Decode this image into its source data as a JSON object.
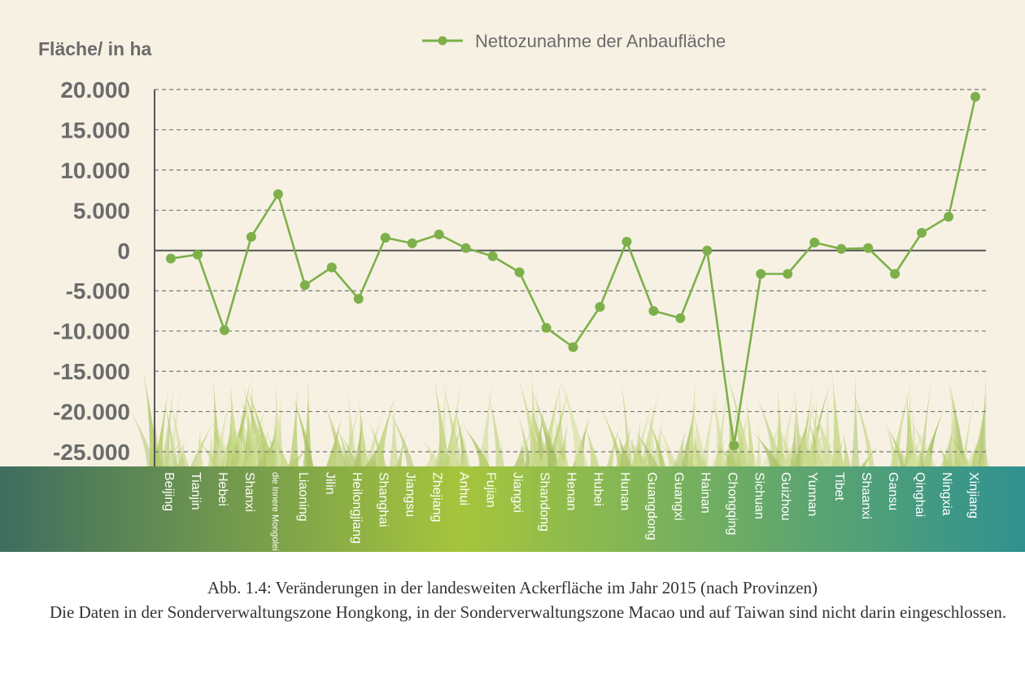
{
  "chart_data": {
    "type": "line",
    "ylabel": "Fläche/ in ha",
    "ylim": [
      -25000,
      20000
    ],
    "ytick_step": 5000,
    "ytick_labels": [
      "20.000",
      "15.000",
      "10.000",
      "5.000",
      "0",
      "-5.000",
      "-10.000",
      "-15.000",
      "-20.000",
      "-25.000"
    ],
    "grid": true,
    "legend_position": "top",
    "categories": [
      "Beijing",
      "Tianjin",
      "Hebei",
      "Shanxi",
      "die Innere Mongolei",
      "Liaoning",
      "Jilin",
      "Heilongjiang",
      "Shanghai",
      "Jiangsu",
      "Zhejiang",
      "Anhui",
      "Fujian",
      "Jiangxi",
      "Shandong",
      "Henan",
      "Hubei",
      "Hunan",
      "Guangdong",
      "Guangxi",
      "Hainan",
      "Chongqing",
      "Sichuan",
      "Guizhou",
      "Yunnan",
      "Tibet",
      "Shaanxi",
      "Gansu",
      "Qinghai",
      "Ningxia",
      "Xinjiang"
    ],
    "series": [
      {
        "name": "Nettozunahme der Anbaufläche",
        "color": "#7db04a",
        "values": [
          -1000,
          -500,
          -9900,
          1700,
          7000,
          -4300,
          -2100,
          -6000,
          1600,
          900,
          2000,
          300,
          -700,
          -2700,
          -9600,
          -12000,
          -7000,
          1100,
          -7500,
          -8400,
          0,
          -24200,
          -2900,
          -2900,
          1000,
          200,
          300,
          -2900,
          2200,
          4200,
          19100
        ]
      }
    ]
  },
  "caption": {
    "title": "Abb. 1.4: Veränderungen in der landesweiten Ackerfläche im Jahr 2015 (nach Provinzen)",
    "note": "Die Daten in der Sonderverwaltungszone Hongkong, in der Sonderverwaltungszone Macao und auf Taiwan sind nicht darin eingeschlossen."
  },
  "colors": {
    "background": "#f7f1e4",
    "line": "#7db04a",
    "axis": "#555555",
    "grid": "#777777",
    "label_text": "#6b6b6b",
    "band_left": "#3e6d5f",
    "band_center": "#a6c53c",
    "band_right": "#2f9190"
  }
}
